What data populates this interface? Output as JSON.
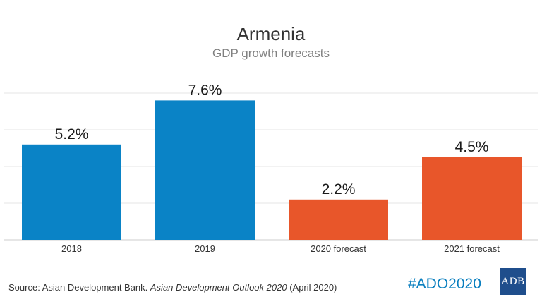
{
  "chart_data": {
    "type": "bar",
    "title": "Armenia",
    "subtitle": "GDP growth forecasts",
    "categories": [
      "2018",
      "2019",
      "2020 forecast",
      "2021 forecast"
    ],
    "values": [
      5.2,
      7.6,
      2.2,
      4.5
    ],
    "value_labels": [
      "5.2%",
      "7.6%",
      "2.2%",
      "4.5%"
    ],
    "bar_colors": [
      "#0a83c6",
      "#0a83c6",
      "#e8562a",
      "#e8562a"
    ],
    "ylim": [
      0,
      8
    ],
    "grid": true,
    "xlabel": "",
    "ylabel": ""
  },
  "source": {
    "prefix": "Source: Asian Development Bank. ",
    "publication": "Asian Development Outlook 2020",
    "suffix": " (April 2020)"
  },
  "hashtag": "#ADO2020",
  "logo": {
    "text": "ADB",
    "color": "#1f4e8c"
  },
  "colors": {
    "hashtag": "#0a7fbf",
    "gridline": "#e6e6e6"
  }
}
